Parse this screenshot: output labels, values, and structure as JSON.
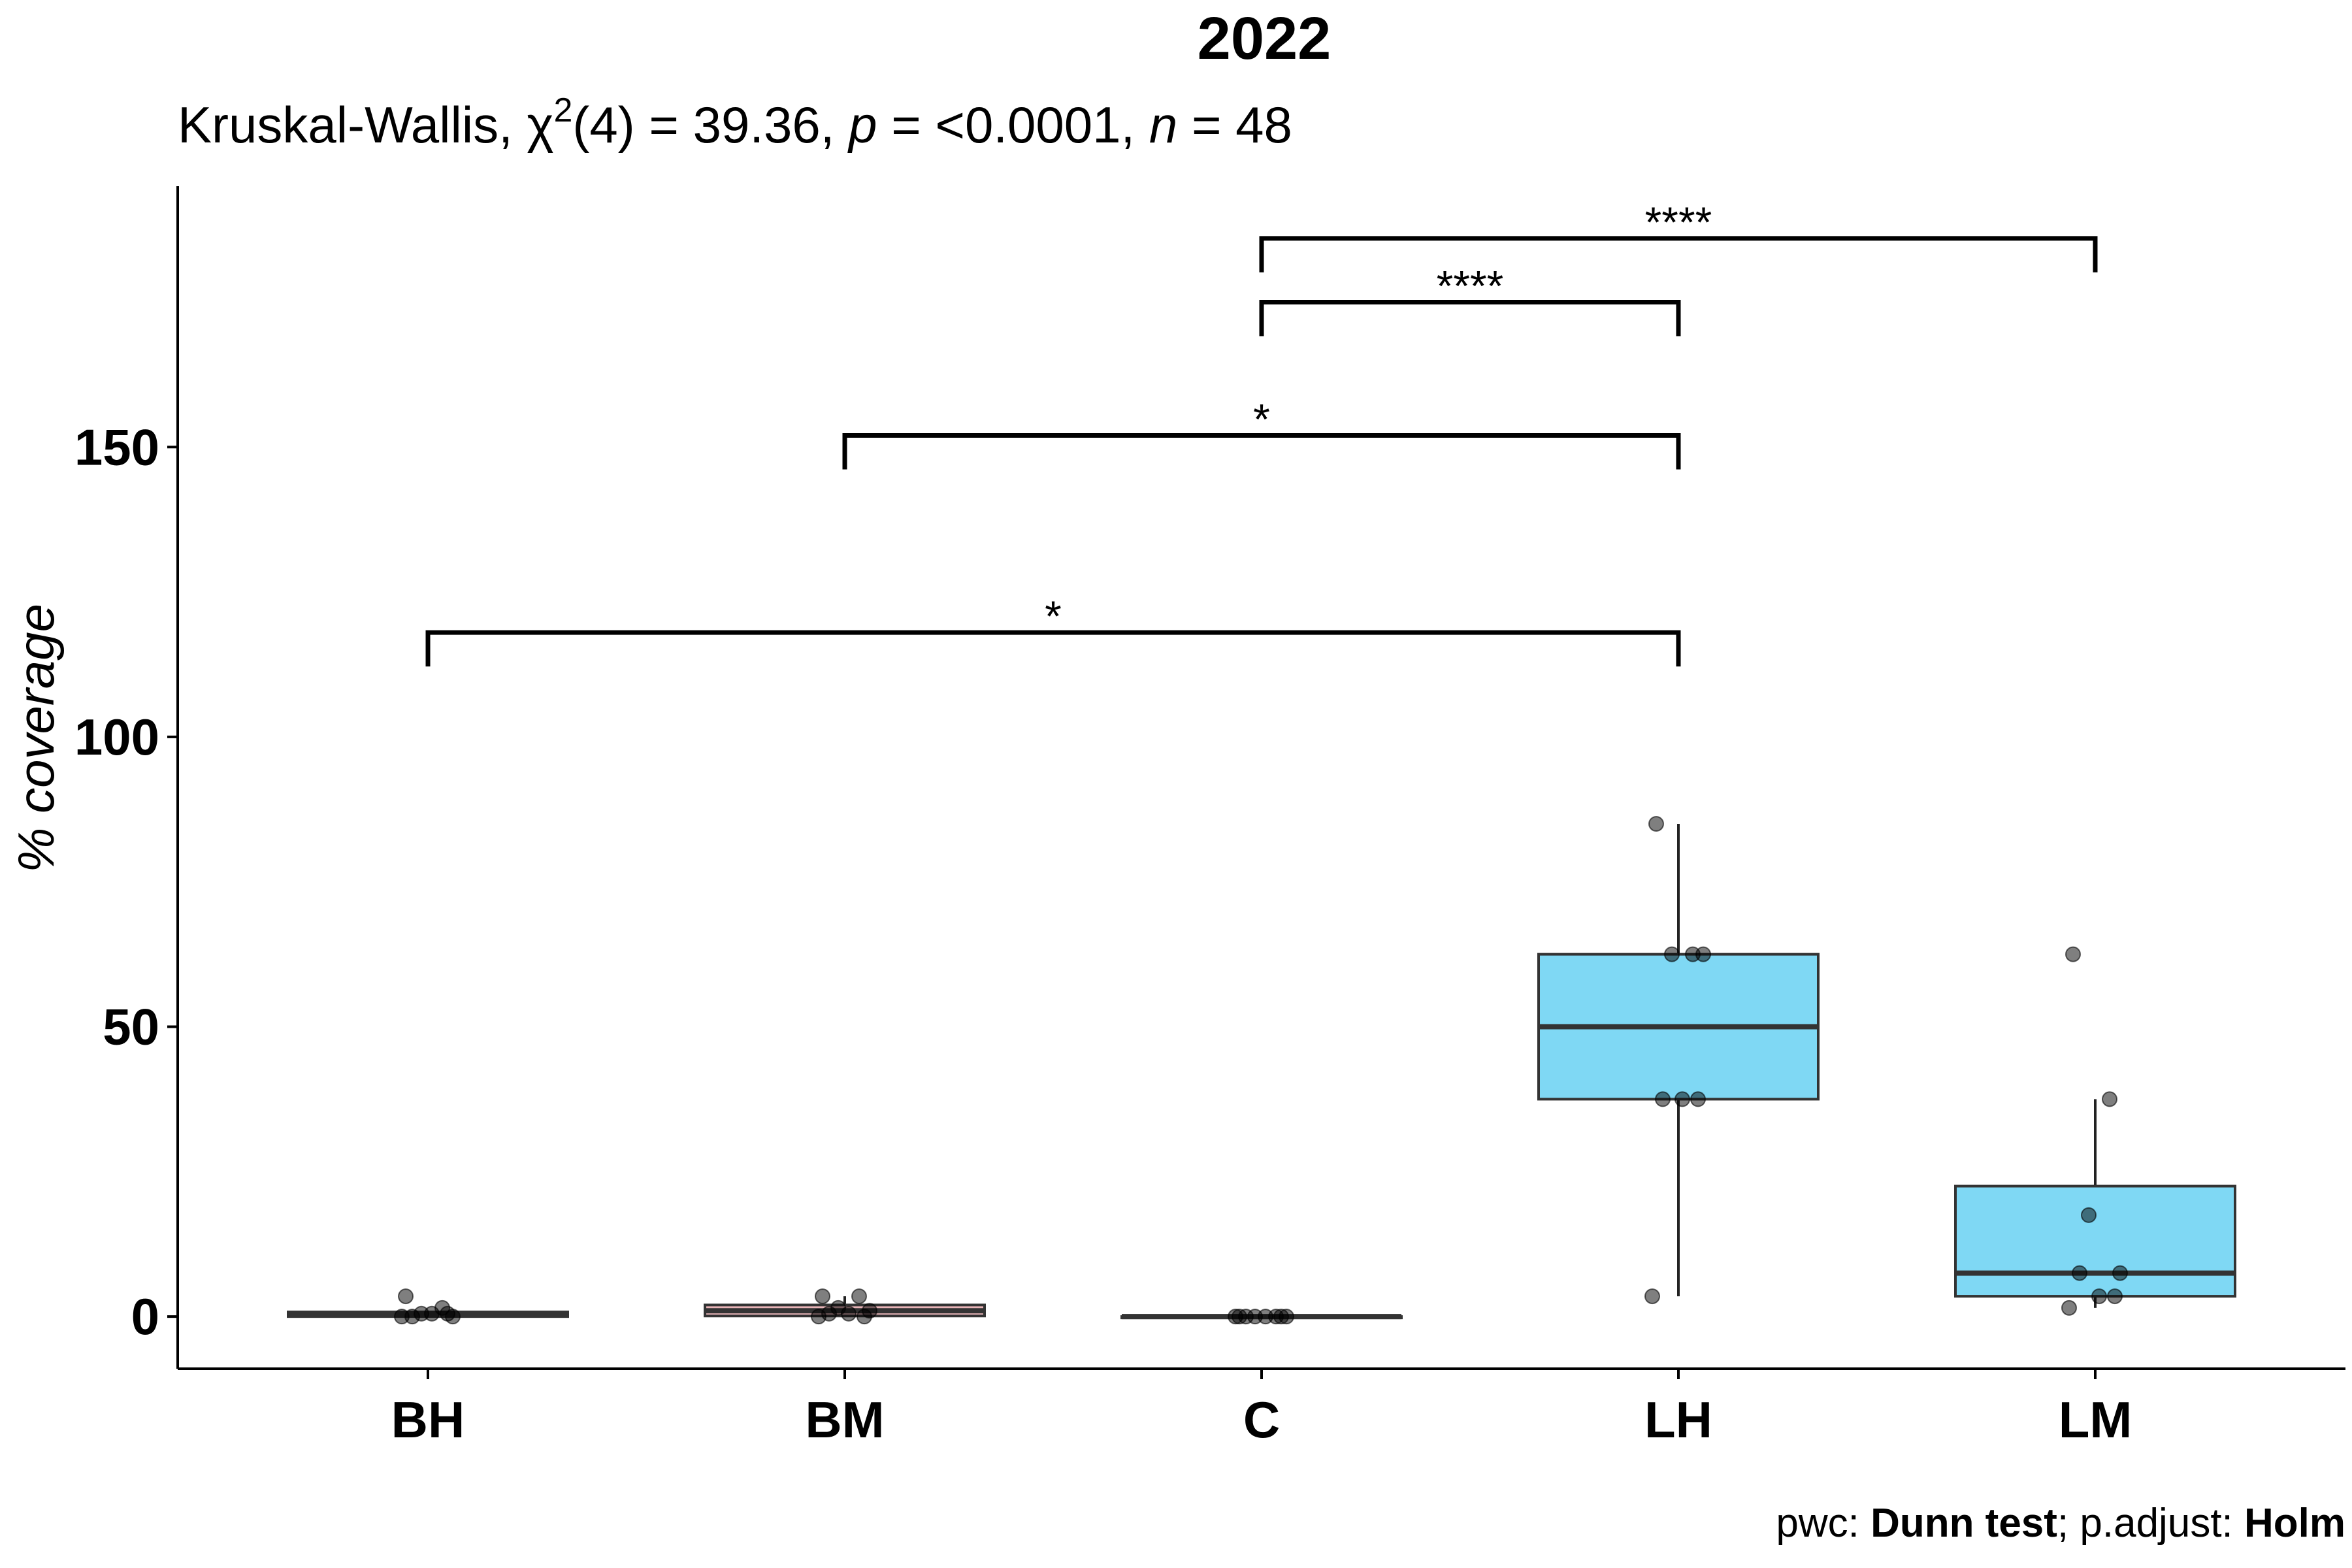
{
  "chart_data": {
    "type": "box",
    "title": "2022",
    "subtitle": {
      "prefix": "Kruskal-Wallis, ",
      "stat_symbol": "χ",
      "stat_sup": "2",
      "stat_df": "(4) = 39.36, ",
      "p_label": "p",
      "p_value": " = <0.0001, ",
      "n_label": "n",
      "n_value": " = 48"
    },
    "ylabel": "% coverage",
    "xlabel": "",
    "ylim": [
      -9,
      195
    ],
    "yticks": [
      0,
      50,
      100,
      150
    ],
    "categories": [
      "BH",
      "BM",
      "C",
      "LH",
      "LM"
    ],
    "boxes": [
      {
        "category": "BH",
        "min": 0,
        "q1": 0,
        "median": 0.5,
        "q3": 0.8,
        "max": 0.8,
        "fill": "#d0d0d0"
      },
      {
        "category": "BM",
        "min": 0,
        "q1": 0.1,
        "median": 1.0,
        "q3": 2.0,
        "max": 3.5,
        "fill": "#e8b4b8"
      },
      {
        "category": "C",
        "min": 0,
        "q1": 0,
        "median": 0,
        "q3": 0,
        "max": 0,
        "fill": "#d0d0d0"
      },
      {
        "category": "LH",
        "min": 3.5,
        "q1": 37.5,
        "median": 50,
        "q3": 62.5,
        "max": 85,
        "fill": "#7fd8f4"
      },
      {
        "category": "LM",
        "min": 1.5,
        "q1": 3.5,
        "median": 7.5,
        "q3": 22.5,
        "max": 37.5,
        "fill": "#7fd8f4"
      }
    ],
    "points": {
      "BH": [
        3.5,
        1.5,
        0.5,
        0,
        0,
        0.5,
        0.5,
        0
      ],
      "BM": [
        3.5,
        3.5,
        1.5,
        1,
        0.5,
        0.5,
        0,
        0
      ],
      "C": [
        0,
        0,
        0,
        0,
        0,
        0,
        0,
        0
      ],
      "LH": [
        85,
        62.5,
        62.5,
        62.5,
        37.5,
        37.5,
        37.5,
        3.5
      ],
      "LM": [
        62.5,
        37.5,
        17.5,
        7.5,
        7.5,
        3.5,
        3.5,
        1.5
      ]
    },
    "comparisons": [
      {
        "from": "BH",
        "to": "LH",
        "y": 118,
        "label": "*"
      },
      {
        "from": "BM",
        "to": "LH",
        "y": 152,
        "label": "*"
      },
      {
        "from": "C",
        "to": "LH",
        "y": 175,
        "label": "****"
      },
      {
        "from": "C",
        "to": "LM",
        "y": 186,
        "label": "****"
      }
    ],
    "caption": {
      "pwc_prefix": "pwc: ",
      "pwc_method": "Dunn test",
      "adjust_prefix": "; p.adjust: ",
      "adjust_method": "Holm"
    },
    "grid": false,
    "legend": "none"
  }
}
